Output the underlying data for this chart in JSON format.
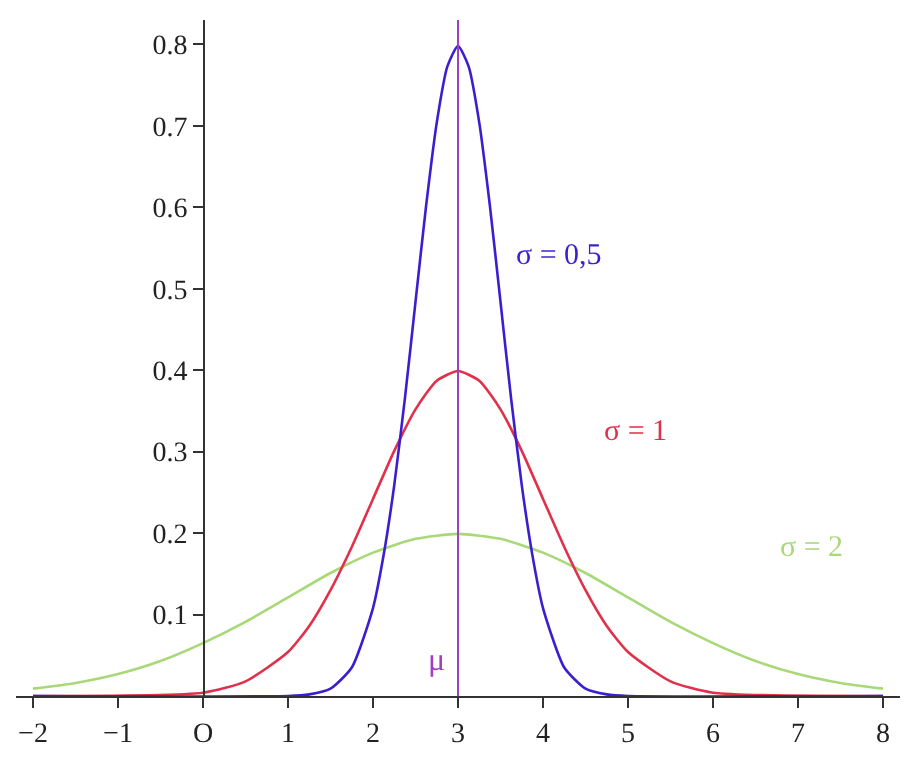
{
  "chart_data": {
    "type": "line",
    "series": [
      {
        "name": "σ = 2",
        "color": "#a8d878",
        "x": [
          -2,
          -1.5,
          -1,
          -0.5,
          0,
          0.5,
          1,
          1.5,
          2,
          2.5,
          3,
          3.5,
          4,
          4.5,
          5,
          5.5,
          6,
          6.5,
          7,
          7.5,
          8
        ],
        "values": [
          0.009,
          0.016,
          0.027,
          0.043,
          0.065,
          0.091,
          0.121,
          0.151,
          0.176,
          0.193,
          0.199,
          0.193,
          0.176,
          0.151,
          0.121,
          0.091,
          0.065,
          0.043,
          0.027,
          0.016,
          0.009
        ]
      },
      {
        "name": "σ = 1",
        "color": "#e0304a",
        "x": [
          -2,
          0,
          0.5,
          1,
          1.25,
          1.5,
          1.75,
          2,
          2.25,
          2.5,
          2.75,
          3,
          3.25,
          3.5,
          3.75,
          4,
          4.25,
          4.5,
          4.75,
          5,
          5.5,
          6,
          8
        ],
        "values": [
          0,
          0.004,
          0.018,
          0.054,
          0.086,
          0.13,
          0.183,
          0.242,
          0.301,
          0.352,
          0.387,
          0.399,
          0.387,
          0.352,
          0.301,
          0.242,
          0.183,
          0.13,
          0.086,
          0.054,
          0.018,
          0.004,
          0
        ]
      },
      {
        "name": "σ = 0,5",
        "color": "#3a1fd0",
        "x": [
          -2,
          1,
          1.25,
          1.5,
          1.75,
          2,
          2.125,
          2.25,
          2.375,
          2.5,
          2.625,
          2.75,
          2.875,
          3,
          3.125,
          3.25,
          3.375,
          3.5,
          3.625,
          3.75,
          3.875,
          4,
          4.25,
          4.5,
          4.75,
          5,
          8
        ],
        "values": [
          0,
          0,
          0.002,
          0.009,
          0.035,
          0.108,
          0.173,
          0.259,
          0.365,
          0.484,
          0.602,
          0.704,
          0.773,
          0.798,
          0.773,
          0.704,
          0.602,
          0.484,
          0.365,
          0.259,
          0.173,
          0.108,
          0.035,
          0.009,
          0.002,
          0,
          0
        ]
      }
    ],
    "xlim": [
      -2.2,
      8.2
    ],
    "ylim": [
      0,
      0.83
    ],
    "xticks": [
      {
        "value": -2,
        "label": "−2"
      },
      {
        "value": -1,
        "label": "−1"
      },
      {
        "value": 0,
        "label": "O"
      },
      1,
      2,
      3,
      4,
      5,
      6,
      7,
      8
    ],
    "yticks": [
      0.1,
      0.2,
      0.3,
      0.4,
      0.5,
      0.6,
      0.7,
      0.8
    ],
    "ref_lines": [
      {
        "axis": "x",
        "value": 3,
        "label": "μ",
        "color": "#a040c0"
      }
    ],
    "marker": "none",
    "line_style": "solid",
    "legend": false
  }
}
